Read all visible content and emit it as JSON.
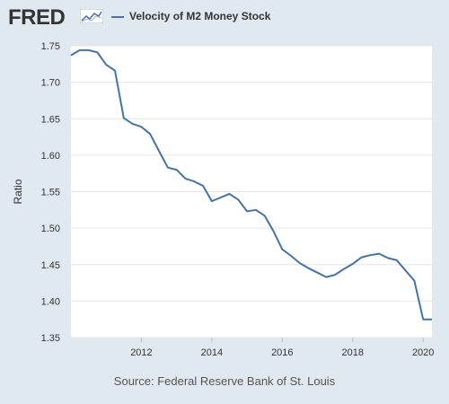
{
  "brand": {
    "logo_text": "FRED"
  },
  "colors": {
    "background": "#e1e9f0",
    "plot_bg": "#ffffff",
    "series": "#4572a7",
    "grid": "#e6e6e6",
    "text": "#333333"
  },
  "legend": {
    "label": "Velocity of M2 Money Stock"
  },
  "footer": {
    "source": "Source: Federal Reserve Bank of St. Louis"
  },
  "chart_data": {
    "type": "line",
    "title": "",
    "ylabel": "Ratio",
    "xlabel": "",
    "ylim": [
      1.35,
      1.75
    ],
    "xlim": [
      2010.0,
      2020.25
    ],
    "y_ticks": [
      "1.35",
      "1.40",
      "1.45",
      "1.50",
      "1.55",
      "1.60",
      "1.65",
      "1.70",
      "1.75"
    ],
    "x_ticks": [
      "2012",
      "2014",
      "2016",
      "2018",
      "2020"
    ],
    "grid": true,
    "legend_position": "top",
    "series": [
      {
        "name": "Velocity of M2 Money Stock",
        "color": "#4572a7",
        "x": [
          2010.0,
          2010.25,
          2010.5,
          2010.75,
          2011.0,
          2011.25,
          2011.5,
          2011.75,
          2012.0,
          2012.25,
          2012.5,
          2012.75,
          2013.0,
          2013.25,
          2013.5,
          2013.75,
          2014.0,
          2014.25,
          2014.5,
          2014.75,
          2015.0,
          2015.25,
          2015.5,
          2015.75,
          2016.0,
          2016.25,
          2016.5,
          2016.75,
          2017.0,
          2017.25,
          2017.5,
          2017.75,
          2018.0,
          2018.25,
          2018.5,
          2018.75,
          2019.0,
          2019.25,
          2019.5,
          2019.75,
          2020.0,
          2020.25
        ],
        "values": [
          1.737,
          1.744,
          1.744,
          1.741,
          1.724,
          1.716,
          1.651,
          1.643,
          1.639,
          1.629,
          1.606,
          1.583,
          1.58,
          1.568,
          1.564,
          1.558,
          1.537,
          1.542,
          1.547,
          1.539,
          1.523,
          1.525,
          1.517,
          1.496,
          1.471,
          1.462,
          1.452,
          1.445,
          1.439,
          1.433,
          1.436,
          1.444,
          1.451,
          1.46,
          1.463,
          1.465,
          1.459,
          1.456,
          1.442,
          1.428,
          1.375,
          1.375
        ]
      }
    ]
  },
  "tick_formats": {}
}
